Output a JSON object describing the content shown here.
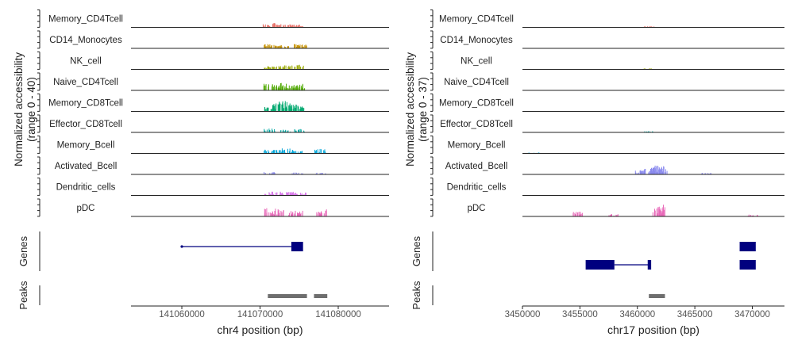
{
  "chart_data": [
    {
      "type": "area",
      "chart_kind": "genome-coverage-track",
      "ylabel": "Normalized accessibility\n(range 0 - 40)",
      "ylim": [
        0,
        40
      ],
      "xlabel": "chr4 position (bp)",
      "xlim": [
        141053500,
        141086500
      ],
      "xticks": [
        141060000,
        141070000,
        141080000
      ],
      "xtick_labels": [
        "141060000",
        "141070000",
        "141080000"
      ],
      "tracks": [
        {
          "name": "Memory_CD4Tcell",
          "color": "#e8736b",
          "peaks": [
            [
              141071000,
              8
            ],
            [
              141072300,
              10
            ],
            [
              141073300,
              7
            ],
            [
              141074700,
              6
            ],
            [
              141075000,
              7
            ]
          ]
        },
        {
          "name": "CD14_Monocytes",
          "color": "#c8960c",
          "peaks": [
            [
              141071200,
              10
            ],
            [
              141072000,
              6
            ],
            [
              141073000,
              8
            ],
            [
              141075000,
              12
            ],
            [
              141075300,
              9
            ]
          ]
        },
        {
          "name": "NK_cell",
          "color": "#9aa800",
          "peaks": [
            [
              141071200,
              7
            ],
            [
              141072500,
              10
            ],
            [
              141073600,
              9
            ],
            [
              141075000,
              11
            ]
          ]
        },
        {
          "name": "Naive_CD4Tcell",
          "color": "#56ad0b",
          "peaks": [
            [
              141071200,
              18
            ],
            [
              141072300,
              14
            ],
            [
              141073000,
              17
            ],
            [
              141074000,
              12
            ],
            [
              141075000,
              15
            ]
          ]
        },
        {
          "name": "Memory_CD8Tcell",
          "color": "#00a86f",
          "peaks": [
            [
              141071200,
              14
            ],
            [
              141072200,
              20
            ],
            [
              141073000,
              25
            ],
            [
              141073600,
              20
            ],
            [
              141074400,
              16
            ],
            [
              141075000,
              14
            ]
          ]
        },
        {
          "name": "Effector_CD8Tcell",
          "color": "#00a9a4",
          "peaks": [
            [
              141071200,
              9
            ],
            [
              141073300,
              6
            ],
            [
              141075000,
              8
            ]
          ]
        },
        {
          "name": "Memory_Bcell",
          "color": "#00a5d8",
          "peaks": [
            [
              141071200,
              9
            ],
            [
              141072500,
              8
            ],
            [
              141073500,
              12
            ],
            [
              141074800,
              6
            ],
            [
              141077700,
              11
            ]
          ]
        },
        {
          "name": "Activated_Bcell",
          "color": "#8a8aee",
          "peaks": [
            [
              141071200,
              6
            ],
            [
              141074800,
              5
            ],
            [
              141077700,
              4
            ]
          ]
        },
        {
          "name": "Dendritic_cells",
          "color": "#d675e8",
          "peaks": [
            [
              141071200,
              9
            ],
            [
              141072200,
              9
            ],
            [
              141073300,
              8
            ],
            [
              141074500,
              9
            ],
            [
              141075200,
              7
            ]
          ]
        },
        {
          "name": "pDC",
          "color": "#e868b8",
          "peaks": [
            [
              141071300,
              20
            ],
            [
              141072500,
              17
            ],
            [
              141074300,
              13
            ],
            [
              141075000,
              13
            ],
            [
              141077800,
              17
            ]
          ]
        }
      ],
      "genes_track": {
        "label": "Genes",
        "genes": [
          {
            "intron": [
              141060000,
              141074000
            ],
            "exons": [
              [
                141074000,
                141075500
              ]
            ],
            "row": 0
          }
        ]
      },
      "peaks_track": {
        "label": "Peaks",
        "peaks": [
          [
            141071000,
            141076000
          ],
          [
            141076900,
            141078600
          ]
        ]
      }
    },
    {
      "type": "area",
      "chart_kind": "genome-coverage-track",
      "ylabel": "Normalized accessibility\n(range 0 - 37)",
      "ylim": [
        0,
        37
      ],
      "xlabel": "chr17 position (bp)",
      "xlim": [
        3450000,
        3472800
      ],
      "xticks": [
        3450000,
        3455000,
        3460000,
        3465000,
        3470000
      ],
      "xtick_labels": [
        "3450000",
        "3455000",
        "3460000",
        "3465000",
        "3470000"
      ],
      "tracks": [
        {
          "name": "Memory_CD4Tcell",
          "color": "#e8736b",
          "peaks": [
            [
              3461000,
              3
            ]
          ]
        },
        {
          "name": "CD14_Monocytes",
          "color": "#c8960c",
          "peaks": []
        },
        {
          "name": "NK_cell",
          "color": "#9aa800",
          "peaks": [
            [
              3461000,
              2
            ]
          ]
        },
        {
          "name": "Naive_CD4Tcell",
          "color": "#56ad0b",
          "peaks": []
        },
        {
          "name": "Memory_CD8Tcell",
          "color": "#00a86f",
          "peaks": []
        },
        {
          "name": "Effector_CD8Tcell",
          "color": "#00a9a4",
          "peaks": [
            [
              3461000,
              3
            ]
          ]
        },
        {
          "name": "Memory_Bcell",
          "color": "#00a5d8",
          "peaks": [
            [
              3451000,
              2
            ]
          ]
        },
        {
          "name": "Activated_Bcell",
          "color": "#8a8aee",
          "peaks": [
            [
              3460200,
              10
            ],
            [
              3461000,
              14
            ],
            [
              3461800,
              22
            ],
            [
              3462100,
              18
            ],
            [
              3466000,
              3
            ]
          ]
        },
        {
          "name": "Dendritic_cells",
          "color": "#d675e8",
          "peaks": []
        },
        {
          "name": "pDC",
          "color": "#e868b8",
          "peaks": [
            [
              3454800,
              10
            ],
            [
              3458000,
              5
            ],
            [
              3461800,
              22
            ],
            [
              3462100,
              25
            ],
            [
              3470100,
              4
            ]
          ]
        }
      ],
      "genes_track": {
        "label": "Genes",
        "genes": [
          {
            "intron": [
              3458000,
              3461000
            ],
            "exons": [
              [
                3455500,
                3458000
              ],
              [
                3460900,
                3461200
              ]
            ],
            "row": 1
          },
          {
            "intron": [
              3468900,
              3470300
            ],
            "exons": [
              [
                3468900,
                3470300
              ]
            ],
            "row": 0
          },
          {
            "intron": [
              3468900,
              3470300
            ],
            "exons": [
              [
                3468900,
                3470300
              ]
            ],
            "row": 1
          }
        ]
      },
      "peaks_track": {
        "label": "Peaks",
        "peaks": [
          [
            3461000,
            3462400
          ]
        ]
      }
    }
  ]
}
